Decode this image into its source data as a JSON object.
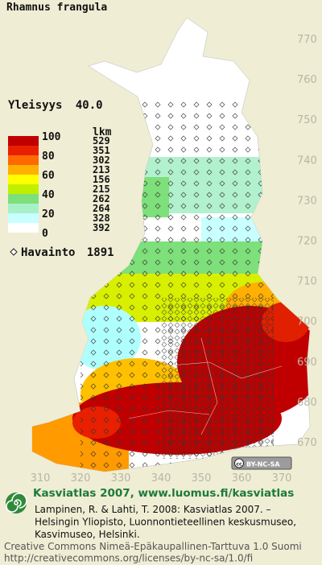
{
  "title": "Rhamnus frangula",
  "frequency": {
    "label": "Yleisyys",
    "value": "40.0"
  },
  "legend": {
    "header": "lkm",
    "scale_labels": [
      "100",
      "80",
      "60",
      "40",
      "20",
      "0"
    ],
    "counts": [
      "529",
      "351",
      "302",
      "213",
      "156",
      "215",
      "262",
      "264",
      "328",
      "392"
    ],
    "colors": [
      "#c00000",
      "#e82000",
      "#ff6a00",
      "#ffb000",
      "#ffff00",
      "#c0f000",
      "#7de07a",
      "#a8f0c8",
      "#c8ffff",
      "#ffffff"
    ]
  },
  "observation": {
    "label": "Havainto",
    "value": "1891"
  },
  "northing_labels": [
    "770",
    "760",
    "750",
    "740",
    "730",
    "720",
    "710",
    "700",
    "690",
    "680",
    "670"
  ],
  "easting_labels": [
    "310",
    "320",
    "330",
    "340",
    "350",
    "360",
    "370"
  ],
  "license_badge": {
    "icon": "cc",
    "text": "BY-NC-SA"
  },
  "footer": {
    "heading": "Kasviatlas 2007, www.luomus.fi/kasviatlas",
    "citation": [
      "Lampinen, R. & Lahti, T. 2008: Kasviatlas 2007. –",
      "Helsingin Yliopisto, Luonnontieteellinen keskusmuseo,",
      "Kasvimuseo, Helsinki."
    ],
    "license": [
      "Creative Commons Nimeä-Epäkaupallinen-Tarttuva 1.0 Suomi",
      "http://creativecommons.org/licenses/by-nc-sa/1.0/fi"
    ]
  }
}
